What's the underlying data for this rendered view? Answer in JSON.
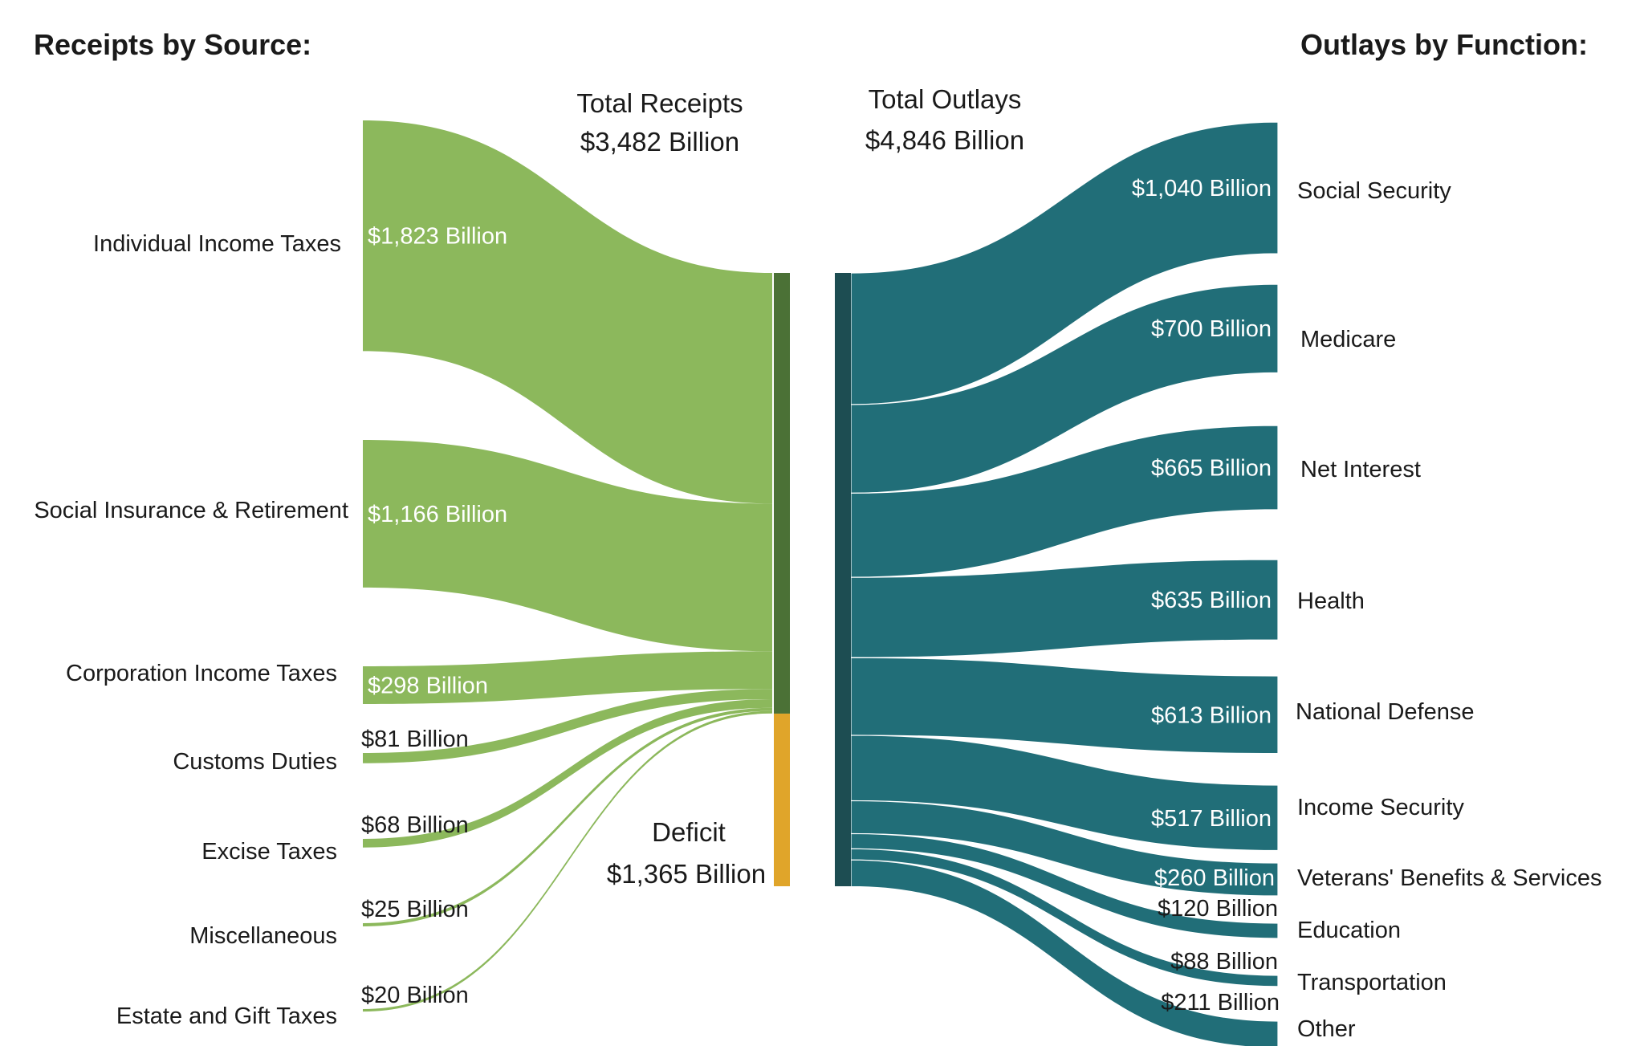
{
  "headers": {
    "receipts": "Receipts by Source:",
    "outlays": "Outlays by Function:"
  },
  "totals": {
    "receipts_label": "Total Receipts",
    "receipts_value": "$3,482 Billion",
    "outlays_label": "Total Outlays",
    "outlays_value": "$4,846 Billion",
    "deficit_label": "Deficit",
    "deficit_value": "$1,365 Billion"
  },
  "colors": {
    "receipts_flow": "#8cb85c",
    "receipts_bar": "#4b7136",
    "deficit": "#e0a52a",
    "outlays_flow": "#216e78",
    "outlays_bar": "#1d4d52"
  },
  "chart_data": {
    "type": "sankey",
    "unit": "Billion USD",
    "receipts": [
      {
        "name": "Individual Income Taxes",
        "value": 1823,
        "label": "$1,823 Billion"
      },
      {
        "name": "Social Insurance & Retirement",
        "value": 1166,
        "label": "$1,166 Billion"
      },
      {
        "name": "Corporation Income Taxes",
        "value": 298,
        "label": "$298 Billion"
      },
      {
        "name": "Customs Duties",
        "value": 81,
        "label": "$81 Billion"
      },
      {
        "name": "Excise Taxes",
        "value": 68,
        "label": "$68 Billion"
      },
      {
        "name": "Miscellaneous",
        "value": 25,
        "label": "$25 Billion"
      },
      {
        "name": "Estate and Gift Taxes",
        "value": 20,
        "label": "$20 Billion"
      }
    ],
    "deficit": 1365,
    "total_receipts": 3482,
    "total_outlays": 4846,
    "outlays": [
      {
        "name": "Social Security",
        "value": 1040,
        "label": "$1,040 Billion"
      },
      {
        "name": "Medicare",
        "value": 700,
        "label": "$700 Billion"
      },
      {
        "name": "Net Interest",
        "value": 665,
        "label": "$665 Billion"
      },
      {
        "name": "Health",
        "value": 635,
        "label": "$635 Billion"
      },
      {
        "name": "National Defense",
        "value": 613,
        "label": "$613 Billion"
      },
      {
        "name": "Income Security",
        "value": 517,
        "label": "$517 Billion"
      },
      {
        "name": "Veterans' Benefits & Services",
        "value": 260,
        "label": "$260 Billion"
      },
      {
        "name": "Education",
        "value": 120,
        "label": "$120 Billion"
      },
      {
        "name": "Transportation",
        "value": 88,
        "label": "$88 Billion"
      },
      {
        "name": "Other",
        "value": 211,
        "label": "$211 Billion"
      }
    ]
  }
}
